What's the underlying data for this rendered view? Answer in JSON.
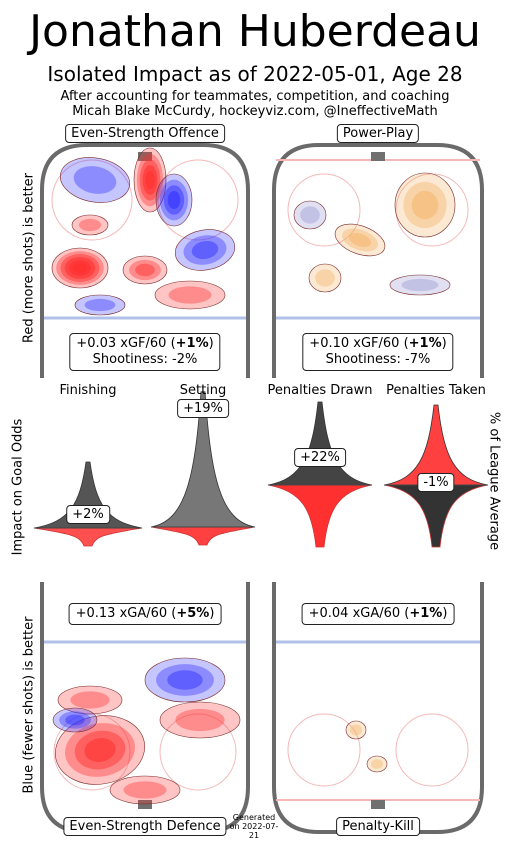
{
  "header": {
    "title": "Jonathan Huberdeau",
    "subtitle": "Isolated Impact as of 2022-05-01, Age 28",
    "note1": "After accounting for teammates, competition, and coaching",
    "note2": "Micah Blake McCurdy, hockeyviz.com, @IneffectiveMath"
  },
  "side_labels": {
    "offence": "Red (more shots) is better",
    "goal_odds": "Impact on Goal Odds",
    "league": "% of League Average",
    "defence": "Blue (fewer shots) is better"
  },
  "panels": {
    "es_offence": {
      "label": "Even-Strength Offence",
      "xg_prefix": "+0.03 xGF/60 (",
      "xg_pct": "+1%",
      "xg_suffix": ")",
      "shootiness": "Shootiness: -2%"
    },
    "pp": {
      "label": "Power-Play",
      "xg_prefix": "+0.10 xGF/60 (",
      "xg_pct": "+1%",
      "xg_suffix": ")",
      "shootiness": "Shootiness: -7%"
    },
    "es_defence": {
      "label": "Even-Strength Defence",
      "xg_prefix": "+0.13 xGA/60 (",
      "xg_pct": "+5%",
      "xg_suffix": ")"
    },
    "pk": {
      "label": "Penalty-Kill",
      "xg_prefix": "+0.04 xGA/60 (",
      "xg_pct": "+1%",
      "xg_suffix": ")"
    }
  },
  "chart_data": {
    "type": "bar",
    "title": "Impact on Goal Odds",
    "ylabel": "% of League Average",
    "categories": [
      "Finishing",
      "Setting",
      "Penalties Drawn",
      "Penalties Taken"
    ],
    "values": [
      2,
      19,
      22,
      -1
    ],
    "labels": [
      "+2%",
      "+19%",
      "+22%",
      "-1%"
    ]
  },
  "colors": {
    "offence_red": "#ff3030",
    "offence_blue": "#3030ff",
    "pp_orange": "#f5b060",
    "rink_border": "#6a6a6a",
    "blue_line": "#b0c0e8",
    "red_line": "#f4b8b8"
  },
  "footer": {
    "generated": "Generated on 2022-07-21"
  }
}
